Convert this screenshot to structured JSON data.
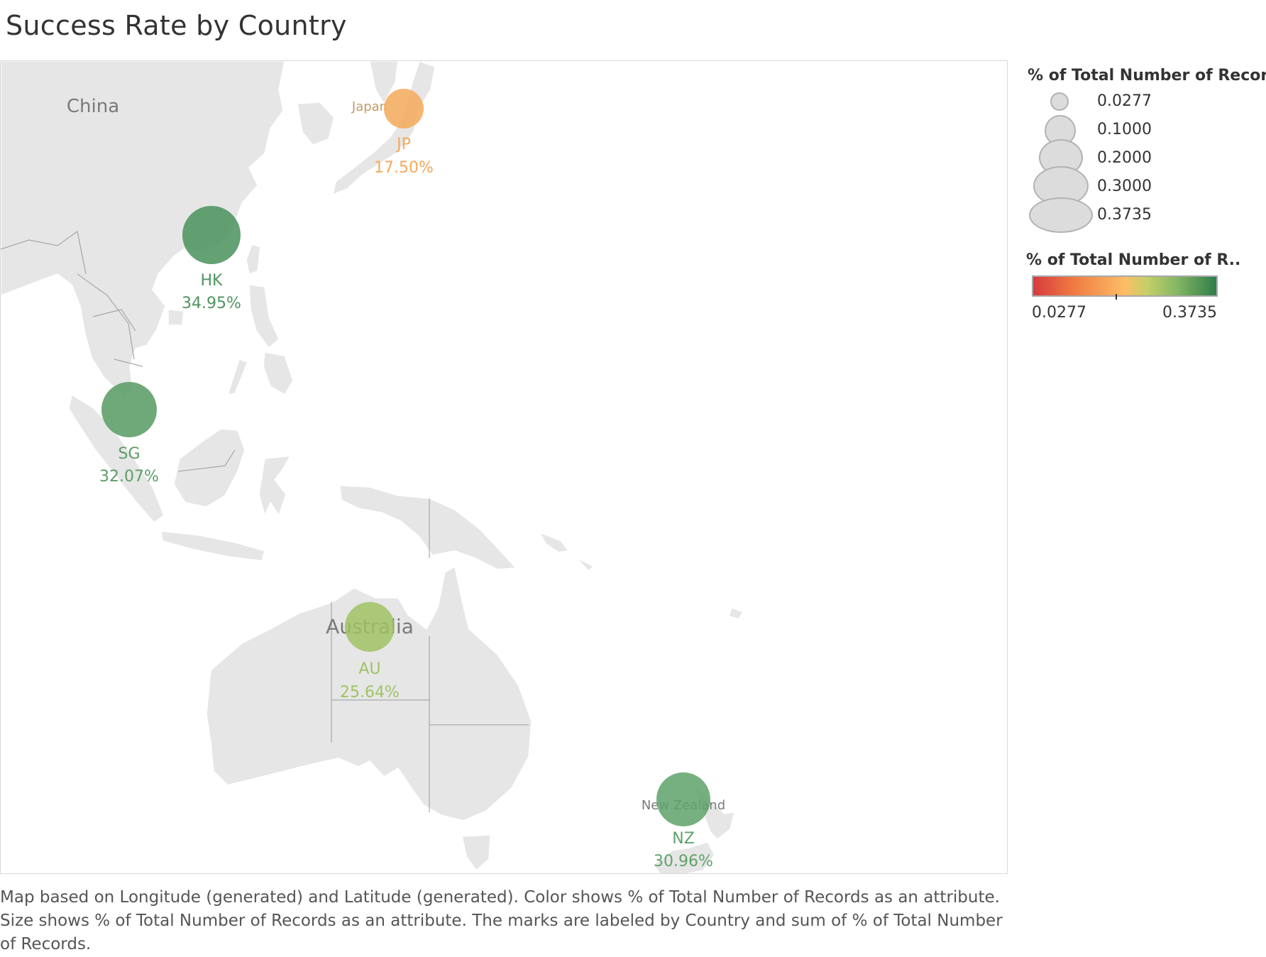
{
  "title": "Success Rate by Country",
  "map": {
    "region_labels": {
      "china": "China",
      "japan": "Japan",
      "australia": "Australia",
      "new_zealand": "New Zealand"
    },
    "marks": [
      {
        "country": "JP",
        "value_label": "17.50%",
        "value": 0.175,
        "color": "#f5a95b"
      },
      {
        "country": "HK",
        "value_label": "34.95%",
        "value": 0.3495,
        "color": "#4e9460"
      },
      {
        "country": "SG",
        "value_label": "32.07%",
        "value": 0.3207,
        "color": "#5c9d66"
      },
      {
        "country": "AU",
        "value_label": "25.64%",
        "value": 0.2564,
        "color": "#9fc264"
      },
      {
        "country": "NZ",
        "value_label": "30.96%",
        "value": 0.3096,
        "color": "#5fa26a"
      }
    ]
  },
  "legend": {
    "size_title": "% of Total Number of Records",
    "size_entries": [
      "0.0277",
      "0.1000",
      "0.2000",
      "0.3000",
      "0.3735"
    ],
    "color_title": "% of Total Number of R..",
    "color_min": "0.0277",
    "color_max": "0.3735",
    "color_stops": [
      "#d73a3f",
      "#ef7a42",
      "#fdbd66",
      "#c5cf6a",
      "#86b764",
      "#2f7d4a"
    ]
  },
  "caption": "Map based on Longitude (generated) and Latitude (generated).  Color shows % of Total Number of Records as an attribute.  Size shows % of Total Number of Records as an attribute.  The marks are labeled by Country and sum of % of Total Number of Records."
}
